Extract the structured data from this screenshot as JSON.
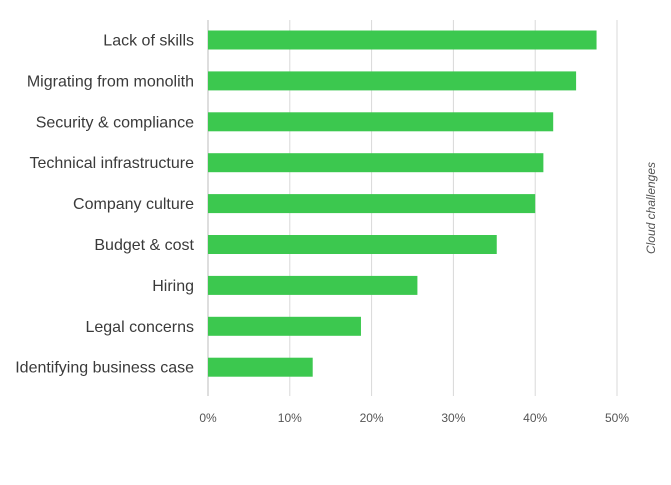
{
  "chart_data": {
    "type": "bar",
    "orientation": "horizontal",
    "categories": [
      "Lack of skills",
      "Migrating from monolith",
      "Security & compliance",
      "Technical infrastructure",
      "Company culture",
      "Budget & cost",
      "Hiring",
      "Legal concerns",
      "Identifying business case"
    ],
    "values": [
      47.5,
      45,
      42.2,
      41,
      40,
      35.3,
      25.6,
      18.7,
      12.8
    ],
    "xlim": [
      0,
      50
    ],
    "xticks": [
      0,
      10,
      20,
      30,
      40,
      50
    ],
    "tick_labels": [
      "0%",
      "10%",
      "20%",
      "30%",
      "40%",
      "50%"
    ],
    "side_label": "Cloud challenges",
    "grid": true,
    "bar_color": "#3cc84f",
    "grid_color": "#d9d9d9"
  }
}
